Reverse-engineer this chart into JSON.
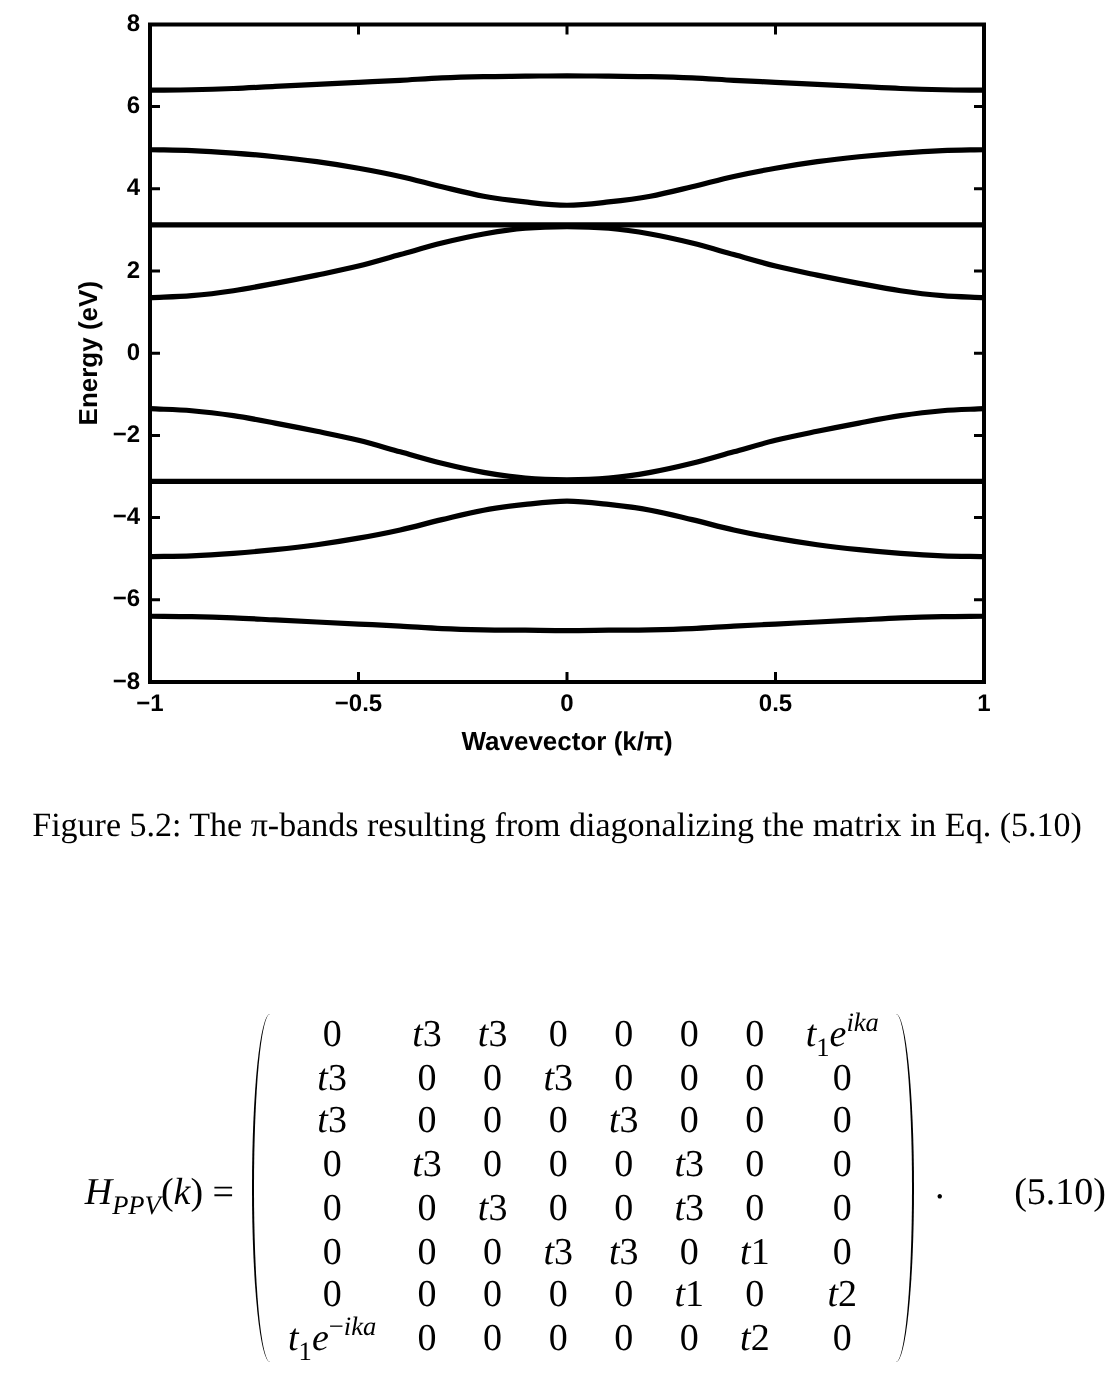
{
  "chart_data": {
    "type": "line",
    "xlabel": "Wavevector (k/π)",
    "ylabel": "Energy (eV)",
    "annotations": [
      "Figure 5.2: The π-bands resulting from diagonalizing the matrix in Eq. (5.10)",
      "H$_{PPV}$(k) =",
      "0 t3 t3 0 0 0 0 t$_{1}$e$^{ika}$",
      "t3 0 0 t3 0 0 0 0",
      "t3 0 0 0 t3 0 0 0",
      "0 t3 0 0 0 t3 0 0",
      "0 0 t3 0 0 t3 0 0",
      "0 0 0 t3 t3 0 t1 0",
      "0 0 0 0 0 t1 0 t2",
      "t$_{1}$e$^{−ika}$ 0 0 0 0 0 t2 0",
      ".",
      "(5.10)"
    ],
    "x": [
      -1,
      -0.9,
      -0.8,
      -0.7,
      -0.6,
      -0.5,
      -0.4,
      -0.3,
      -0.2,
      -0.1,
      0,
      0.1,
      0.2,
      0.3,
      0.4,
      0.5,
      0.6,
      0.7,
      0.8,
      0.9,
      1
    ],
    "series": [
      {
        "color": "#000000",
        "values": [
          6.4,
          6.41,
          6.44,
          6.49,
          6.54,
          6.59,
          6.64,
          6.7,
          6.73,
          6.74,
          6.75,
          6.74,
          6.73,
          6.7,
          6.64,
          6.59,
          6.54,
          6.49,
          6.44,
          6.41,
          6.4
        ]
      },
      {
        "color": "#000000",
        "values": [
          4.95,
          4.93,
          4.87,
          4.78,
          4.66,
          4.5,
          4.3,
          4.05,
          3.82,
          3.68,
          3.6,
          3.68,
          3.82,
          4.05,
          4.3,
          4.5,
          4.66,
          4.78,
          4.87,
          4.93,
          4.95
        ]
      },
      {
        "color": "#000000",
        "values": [
          3.12,
          3.12,
          3.12,
          3.12,
          3.12,
          3.12,
          3.12,
          3.12,
          3.12,
          3.12,
          3.12,
          3.12,
          3.12,
          3.12,
          3.12,
          3.12,
          3.12,
          3.12,
          3.12,
          3.12,
          3.12
        ]
      },
      {
        "color": "#000000",
        "values": [
          1.35,
          1.4,
          1.52,
          1.7,
          1.9,
          2.12,
          2.4,
          2.68,
          2.9,
          3.04,
          3.08,
          3.04,
          2.9,
          2.68,
          2.4,
          2.12,
          1.9,
          1.7,
          1.52,
          1.4,
          1.35
        ]
      },
      {
        "color": "#000000",
        "values": [
          -1.35,
          -1.4,
          -1.52,
          -1.7,
          -1.9,
          -2.12,
          -2.4,
          -2.68,
          -2.9,
          -3.04,
          -3.08,
          -3.04,
          -2.9,
          -2.68,
          -2.4,
          -2.12,
          -1.9,
          -1.7,
          -1.52,
          -1.4,
          -1.35
        ]
      },
      {
        "color": "#000000",
        "values": [
          -3.12,
          -3.12,
          -3.12,
          -3.12,
          -3.12,
          -3.12,
          -3.12,
          -3.12,
          -3.12,
          -3.12,
          -3.12,
          -3.12,
          -3.12,
          -3.12,
          -3.12,
          -3.12,
          -3.12,
          -3.12,
          -3.12,
          -3.12,
          -3.12
        ]
      },
      {
        "color": "#000000",
        "values": [
          -4.95,
          -4.93,
          -4.87,
          -4.78,
          -4.66,
          -4.5,
          -4.3,
          -4.05,
          -3.82,
          -3.68,
          -3.6,
          -3.68,
          -3.82,
          -4.05,
          -4.3,
          -4.5,
          -4.66,
          -4.78,
          -4.87,
          -4.93,
          -4.95
        ]
      },
      {
        "color": "#000000",
        "values": [
          -6.4,
          -6.41,
          -6.44,
          -6.49,
          -6.54,
          -6.59,
          -6.64,
          -6.7,
          -6.73,
          -6.74,
          -6.75,
          -6.74,
          -6.73,
          -6.7,
          -6.64,
          -6.59,
          -6.54,
          -6.49,
          -6.44,
          -6.41,
          -6.4
        ]
      }
    ],
    "xlim": [
      -1,
      1
    ],
    "xticks": [
      {
        "value": -1,
        "label": "−1"
      },
      {
        "value": -0.5,
        "label": "−0.5"
      },
      0,
      0.5,
      1
    ],
    "ylim": [
      -8,
      8
    ],
    "yticks": [
      {
        "value": -8,
        "label": "−8"
      },
      {
        "value": -6,
        "label": "−6"
      },
      {
        "value": -4,
        "label": "−4"
      },
      {
        "value": -2,
        "label": "−2"
      },
      0,
      2,
      4,
      6,
      8
    ],
    "marker": "none",
    "line_style": "solid"
  }
}
